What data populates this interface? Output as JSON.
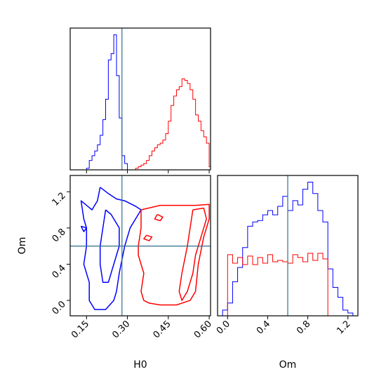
{
  "chart_data": {
    "type": "corner",
    "parameters": [
      "H0",
      "Om"
    ],
    "truth": {
      "H0": 0.28,
      "Om": 0.6
    },
    "colors": {
      "blue": "#0000ff",
      "red": "#ff0000",
      "truth": "#2e6f8e"
    },
    "panels": [
      {
        "id": "hist_H0",
        "type": "histogram",
        "parameter": "H0",
        "xlim": [
          0.09,
          0.605
        ],
        "xticks": [
          0.15,
          0.3,
          0.45,
          0.6
        ],
        "xtick_labels_visible": false,
        "series": [
          {
            "color": "blue",
            "bin_width": 0.01,
            "bins": [
              0.15,
              0.16,
              0.17,
              0.18,
              0.19,
              0.2,
              0.21,
              0.22,
              0.23,
              0.24,
              0.25,
              0.26,
              0.27,
              0.28,
              0.29
            ],
            "density": [
              0.01,
              0.06,
              0.09,
              0.12,
              0.16,
              0.22,
              0.32,
              0.45,
              0.7,
              0.74,
              0.86,
              0.6,
              0.33,
              0.09,
              0.04
            ]
          },
          {
            "color": "red",
            "bin_width": 0.01,
            "bins": [
              0.33,
              0.34,
              0.35,
              0.36,
              0.37,
              0.38,
              0.39,
              0.4,
              0.41,
              0.42,
              0.43,
              0.44,
              0.45,
              0.46,
              0.47,
              0.48,
              0.49,
              0.5,
              0.51,
              0.52,
              0.53,
              0.54,
              0.55,
              0.56,
              0.57,
              0.58,
              0.59,
              0.6
            ],
            "density": [
              0.01,
              0.02,
              0.03,
              0.04,
              0.06,
              0.09,
              0.12,
              0.14,
              0.16,
              0.17,
              0.19,
              0.23,
              0.31,
              0.41,
              0.47,
              0.51,
              0.53,
              0.58,
              0.57,
              0.55,
              0.51,
              0.45,
              0.35,
              0.31,
              0.25,
              0.21,
              0.17,
              0.02
            ]
          }
        ]
      },
      {
        "id": "contour_H0_Om",
        "type": "contour",
        "xparam": "H0",
        "yparam": "Om",
        "xlim": [
          0.09,
          0.605
        ],
        "ylim": [
          -0.17,
          1.38
        ],
        "xticks": [
          0.15,
          0.3,
          0.45,
          0.6
        ],
        "xtick_labels": [
          "0.15",
          "0.30",
          "0.45",
          "0.60"
        ],
        "yticks": [
          0.0,
          0.4,
          0.8,
          1.2
        ],
        "ytick_labels": [
          "0.0",
          "0.4",
          "0.8",
          "1.2"
        ],
        "xlabel": "H0",
        "ylabel": "Om",
        "contours": [
          {
            "color": "blue",
            "points": [
              [
                0.2,
                1.25
              ],
              [
                0.23,
                1.18
              ],
              [
                0.26,
                1.12
              ],
              [
                0.29,
                1.1
              ],
              [
                0.33,
                1.04
              ],
              [
                0.35,
                1.0
              ],
              [
                0.33,
                0.9
              ],
              [
                0.31,
                0.8
              ],
              [
                0.29,
                0.6
              ],
              [
                0.27,
                0.3
              ],
              [
                0.26,
                0.1
              ],
              [
                0.25,
                0.0
              ],
              [
                0.22,
                -0.1
              ],
              [
                0.18,
                -0.1
              ],
              [
                0.16,
                0.0
              ],
              [
                0.16,
                0.2
              ],
              [
                0.14,
                0.4
              ],
              [
                0.15,
                0.6
              ],
              [
                0.15,
                0.8
              ],
              [
                0.14,
                0.9
              ],
              [
                0.13,
                1.1
              ],
              [
                0.17,
                1.0
              ],
              [
                0.19,
                1.1
              ],
              [
                0.2,
                1.25
              ]
            ]
          },
          {
            "color": "blue",
            "points": [
              [
                0.22,
                1.0
              ],
              [
                0.24,
                0.95
              ],
              [
                0.27,
                0.8
              ],
              [
                0.27,
                0.6
              ],
              [
                0.25,
                0.4
              ],
              [
                0.23,
                0.2
              ],
              [
                0.21,
                0.2
              ],
              [
                0.2,
                0.4
              ],
              [
                0.2,
                0.6
              ],
              [
                0.21,
                0.8
              ],
              [
                0.22,
                1.0
              ]
            ]
          },
          {
            "color": "blue",
            "points": [
              [
                0.13,
                0.82
              ],
              [
                0.15,
                0.8
              ],
              [
                0.14,
                0.76
              ],
              [
                0.13,
                0.82
              ]
            ]
          },
          {
            "color": "red",
            "points": [
              [
                0.35,
                1.0
              ],
              [
                0.42,
                1.05
              ],
              [
                0.55,
                1.05
              ],
              [
                0.6,
                1.06
              ],
              [
                0.6,
                0.9
              ],
              [
                0.58,
                0.7
              ],
              [
                0.56,
                0.4
              ],
              [
                0.55,
                0.1
              ],
              [
                0.53,
                0.0
              ],
              [
                0.48,
                -0.05
              ],
              [
                0.42,
                -0.05
              ],
              [
                0.38,
                -0.03
              ],
              [
                0.36,
                0.0
              ],
              [
                0.35,
                0.1
              ],
              [
                0.36,
                0.3
              ],
              [
                0.35,
                0.4
              ],
              [
                0.34,
                0.5
              ],
              [
                0.34,
                0.6
              ],
              [
                0.35,
                0.8
              ],
              [
                0.35,
                0.9
              ],
              [
                0.35,
                1.0
              ]
            ]
          },
          {
            "color": "red",
            "points": [
              [
                0.54,
                1.0
              ],
              [
                0.58,
                1.02
              ],
              [
                0.59,
                0.9
              ],
              [
                0.57,
                0.7
              ],
              [
                0.55,
                0.5
              ],
              [
                0.54,
                0.3
              ],
              [
                0.52,
                0.1
              ],
              [
                0.5,
                0.0
              ],
              [
                0.49,
                0.1
              ],
              [
                0.5,
                0.3
              ],
              [
                0.52,
                0.6
              ],
              [
                0.53,
                0.8
              ],
              [
                0.54,
                1.0
              ]
            ]
          },
          {
            "color": "red",
            "points": [
              [
                0.41,
                0.95
              ],
              [
                0.43,
                0.92
              ],
              [
                0.42,
                0.88
              ],
              [
                0.4,
                0.9
              ],
              [
                0.41,
                0.95
              ]
            ]
          },
          {
            "color": "red",
            "points": [
              [
                0.37,
                0.72
              ],
              [
                0.39,
                0.7
              ],
              [
                0.38,
                0.66
              ],
              [
                0.36,
                0.68
              ],
              [
                0.37,
                0.72
              ]
            ]
          }
        ]
      },
      {
        "id": "hist_Om",
        "type": "histogram",
        "parameter": "Om",
        "xlim": [
          -0.1,
          1.3
        ],
        "xticks": [
          0.0,
          0.4,
          0.8,
          1.2
        ],
        "xtick_labels": [
          "0.0",
          "0.4",
          "0.8",
          "1.2"
        ],
        "xlabel": "Om",
        "series": [
          {
            "color": "blue",
            "bin_width": 0.05,
            "bins": [
              -0.05,
              0.0,
              0.05,
              0.1,
              0.15,
              0.2,
              0.25,
              0.3,
              0.35,
              0.4,
              0.45,
              0.5,
              0.55,
              0.6,
              0.65,
              0.7,
              0.75,
              0.8,
              0.85,
              0.9,
              0.95,
              1.0,
              1.05,
              1.1,
              1.15,
              1.2
            ],
            "density": [
              0.04,
              0.09,
              0.24,
              0.34,
              0.48,
              0.63,
              0.66,
              0.67,
              0.71,
              0.74,
              0.71,
              0.77,
              0.84,
              0.74,
              0.81,
              0.78,
              0.89,
              0.94,
              0.86,
              0.74,
              0.66,
              0.33,
              0.2,
              0.13,
              0.04,
              0.02
            ]
          },
          {
            "color": "red",
            "bin_width": 0.05,
            "bins": [
              0.0,
              0.05,
              0.1,
              0.15,
              0.2,
              0.25,
              0.3,
              0.35,
              0.4,
              0.45,
              0.5,
              0.55,
              0.6,
              0.65,
              0.7,
              0.75,
              0.8,
              0.85,
              0.9,
              0.95
            ],
            "density": [
              0.43,
              0.37,
              0.41,
              0.36,
              0.42,
              0.36,
              0.41,
              0.37,
              0.43,
              0.38,
              0.39,
              0.38,
              0.37,
              0.43,
              0.41,
              0.38,
              0.44,
              0.39,
              0.44,
              0.4
            ]
          }
        ]
      }
    ]
  }
}
